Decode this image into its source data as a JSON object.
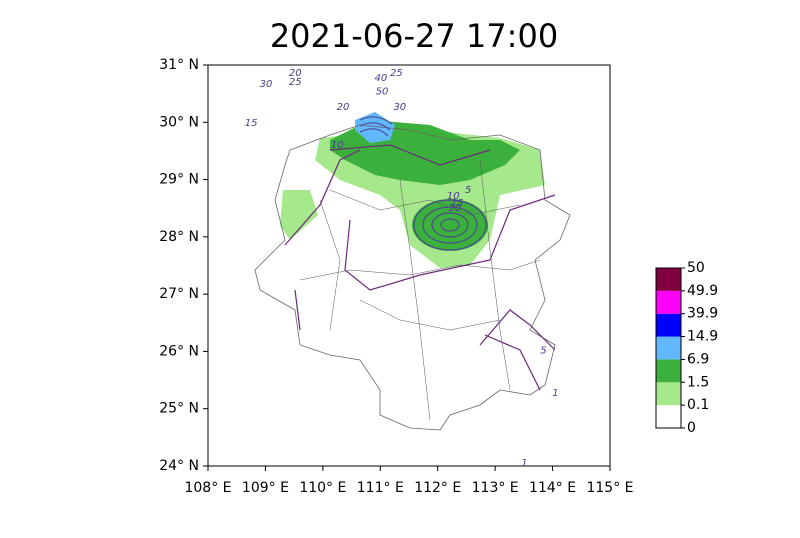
{
  "title": "2021-06-27 17:00",
  "map": {
    "xlim": [
      108,
      115
    ],
    "ylim": [
      24,
      31
    ],
    "xticks": [
      {
        "value": 108,
        "label": "108° E"
      },
      {
        "value": 109,
        "label": "109° E"
      },
      {
        "value": 110,
        "label": "110° E"
      },
      {
        "value": 111,
        "label": "111° E"
      },
      {
        "value": 112,
        "label": "112° E"
      },
      {
        "value": 113,
        "label": "113° E"
      },
      {
        "value": 114,
        "label": "114° E"
      },
      {
        "value": 115,
        "label": "115° E"
      }
    ],
    "yticks": [
      {
        "value": 24,
        "label": "24° N"
      },
      {
        "value": 25,
        "label": "25° N"
      },
      {
        "value": 26,
        "label": "26° N"
      },
      {
        "value": 27,
        "label": "27° N"
      },
      {
        "value": 28,
        "label": "28° N"
      },
      {
        "value": 29,
        "label": "29° N"
      },
      {
        "value": 30,
        "label": "30° N"
      },
      {
        "value": 31,
        "label": "31° N"
      }
    ],
    "contour_labels": [
      {
        "value": 30,
        "lon": 109.01,
        "lat": 30.67
      },
      {
        "value": 20,
        "lon": 109.52,
        "lat": 30.86
      },
      {
        "value": 25,
        "lon": 109.52,
        "lat": 30.7
      },
      {
        "value": 40,
        "lon": 111.01,
        "lat": 30.77
      },
      {
        "value": 25,
        "lon": 111.28,
        "lat": 30.86
      },
      {
        "value": 50,
        "lon": 111.03,
        "lat": 30.54
      },
      {
        "value": 20,
        "lon": 110.35,
        "lat": 30.27
      },
      {
        "value": 30,
        "lon": 111.34,
        "lat": 30.27
      },
      {
        "value": 15,
        "lon": 108.75,
        "lat": 29.99
      },
      {
        "value": 10,
        "lon": 110.25,
        "lat": 29.6
      },
      {
        "value": 5,
        "lon": 112.53,
        "lat": 28.82
      },
      {
        "value": 10,
        "lon": 112.27,
        "lat": 28.71
      },
      {
        "value": 15,
        "lon": 112.34,
        "lat": 28.59
      },
      {
        "value": 20,
        "lon": 112.3,
        "lat": 28.5
      },
      {
        "value": 5,
        "lon": 113.84,
        "lat": 26.02
      },
      {
        "value": 1,
        "lon": 114.05,
        "lat": 25.27
      },
      {
        "value": 1,
        "lon": 113.51,
        "lat": 24.05
      }
    ]
  },
  "colorbar": {
    "levels": [
      0,
      0.1,
      1.5,
      6.9,
      14.9,
      39.9,
      49.9,
      50
    ],
    "colors": [
      "#ffffff",
      "#a6e88c",
      "#3cb03c",
      "#61b8ff",
      "#0000fe",
      "#fa00fa",
      "#800040"
    ]
  }
}
